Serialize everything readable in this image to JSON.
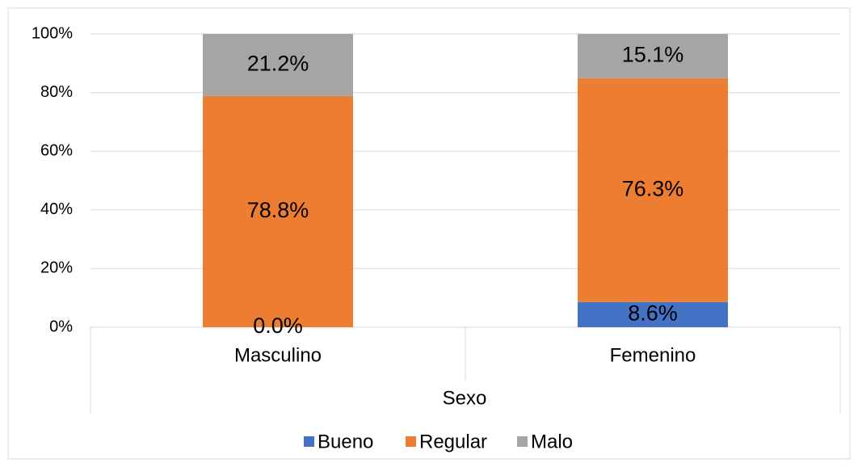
{
  "chart_data": {
    "type": "bar",
    "stacked": true,
    "categories": [
      "Masculino",
      "Femenino"
    ],
    "x_label": "Sexo",
    "series": [
      {
        "name": "Bueno",
        "color": "#4472c4",
        "values": [
          0,
          8.6
        ],
        "value_labels": [
          "0.0%",
          "8.6%"
        ]
      },
      {
        "name": "Regular",
        "color": "#ed7d31",
        "values": [
          78.8,
          76.3
        ],
        "value_labels": [
          "78.8%",
          "76.3%"
        ]
      },
      {
        "name": "Malo",
        "color": "#a5a5a5",
        "values": [
          21.2,
          15.1
        ],
        "value_labels": [
          "21.2%",
          "15.1%"
        ]
      }
    ],
    "ylim": [
      0,
      100
    ],
    "yticks": [
      {
        "value": 0,
        "label": "0%"
      },
      {
        "value": 20,
        "label": "20%"
      },
      {
        "value": 40,
        "label": "40%"
      },
      {
        "value": 60,
        "label": "60%"
      },
      {
        "value": 80,
        "label": "80%"
      },
      {
        "value": 100,
        "label": "100%"
      }
    ],
    "grid": true,
    "legend": "bottom"
  }
}
